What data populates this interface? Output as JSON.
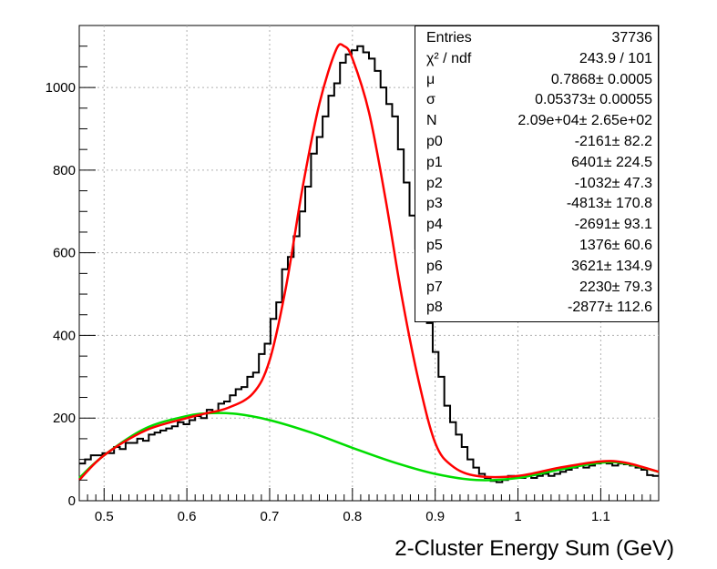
{
  "chart_data": {
    "type": "histogram",
    "xlabel": "2-Cluster Energy Sum  (GeV)",
    "ylabel": "",
    "xlim": [
      0.47,
      1.17
    ],
    "ylim": [
      0,
      1150
    ],
    "x_ticks": [
      "0.5",
      "0.6",
      "0.7",
      "0.8",
      "0.9",
      "1",
      "1.1"
    ],
    "y_ticks": [
      "0",
      "200",
      "400",
      "600",
      "800",
      "1000"
    ],
    "grid": true,
    "legend": "top-right stats box",
    "colors": {
      "histogram": "#000000",
      "fit": "#ff0000",
      "background": "#00dd00"
    },
    "bin_width": 0.007,
    "x_start": 0.47,
    "histogram_values": [
      90,
      100,
      110,
      110,
      115,
      115,
      130,
      125,
      140,
      140,
      150,
      145,
      160,
      165,
      170,
      175,
      180,
      190,
      185,
      195,
      205,
      200,
      220,
      215,
      235,
      240,
      255,
      270,
      275,
      300,
      310,
      355,
      380,
      440,
      480,
      560,
      590,
      640,
      700,
      760,
      840,
      880,
      930,
      980,
      1010,
      1060,
      1080,
      1090,
      1100,
      1085,
      1070,
      1040,
      1000,
      960,
      930,
      850,
      770,
      690,
      610,
      520,
      430,
      360,
      300,
      230,
      190,
      160,
      130,
      100,
      80,
      65,
      55,
      48,
      45,
      50,
      60,
      55,
      55,
      60,
      55,
      60,
      65,
      60,
      65,
      70,
      75,
      80,
      85,
      80,
      85,
      90,
      95,
      90,
      85,
      90,
      88,
      85,
      80,
      75,
      62,
      60
    ],
    "fit_curve": {
      "name": "signal+background fit",
      "x": [
        0.47,
        0.5,
        0.55,
        0.6,
        0.62,
        0.65,
        0.68,
        0.7,
        0.72,
        0.74,
        0.76,
        0.78,
        0.79,
        0.8,
        0.82,
        0.84,
        0.86,
        0.88,
        0.9,
        0.92,
        0.95,
        1.0,
        1.05,
        1.1,
        1.13,
        1.17
      ],
      "y": [
        50,
        110,
        170,
        200,
        210,
        225,
        260,
        340,
        520,
        760,
        960,
        1090,
        1100,
        1070,
        940,
        730,
        490,
        290,
        140,
        85,
        60,
        60,
        80,
        95,
        92,
        70
      ]
    },
    "background_curve": {
      "name": "background",
      "x": [
        0.47,
        0.5,
        0.55,
        0.6,
        0.63,
        0.66,
        0.7,
        0.75,
        0.8,
        0.85,
        0.9,
        0.95,
        1.0,
        1.05,
        1.1,
        1.13,
        1.17
      ],
      "y": [
        55,
        110,
        175,
        205,
        212,
        210,
        195,
        165,
        128,
        93,
        65,
        50,
        55,
        75,
        92,
        90,
        70
      ]
    }
  },
  "stats": [
    {
      "name": "Entries",
      "value": "37736"
    },
    {
      "name": "χ² / ndf",
      "value": "243.9 / 101"
    },
    {
      "name": "μ",
      "value": "0.7868± 0.0005"
    },
    {
      "name": "σ",
      "value": "0.05373± 0.00055"
    },
    {
      "name": "N",
      "value": "2.09e+04± 2.65e+02"
    },
    {
      "name": "p0",
      "value": "-2161± 82.2"
    },
    {
      "name": "p1",
      "value": "6401± 224.5"
    },
    {
      "name": "p2",
      "value": "-1032± 47.3"
    },
    {
      "name": "p3",
      "value": "-4813± 170.8"
    },
    {
      "name": "p4",
      "value": "-2691± 93.1"
    },
    {
      "name": "p5",
      "value": "1376± 60.6"
    },
    {
      "name": "p6",
      "value": "3621± 134.9"
    },
    {
      "name": "p7",
      "value": "2230± 79.3"
    },
    {
      "name": "p8",
      "value": "-2877± 112.6"
    }
  ]
}
